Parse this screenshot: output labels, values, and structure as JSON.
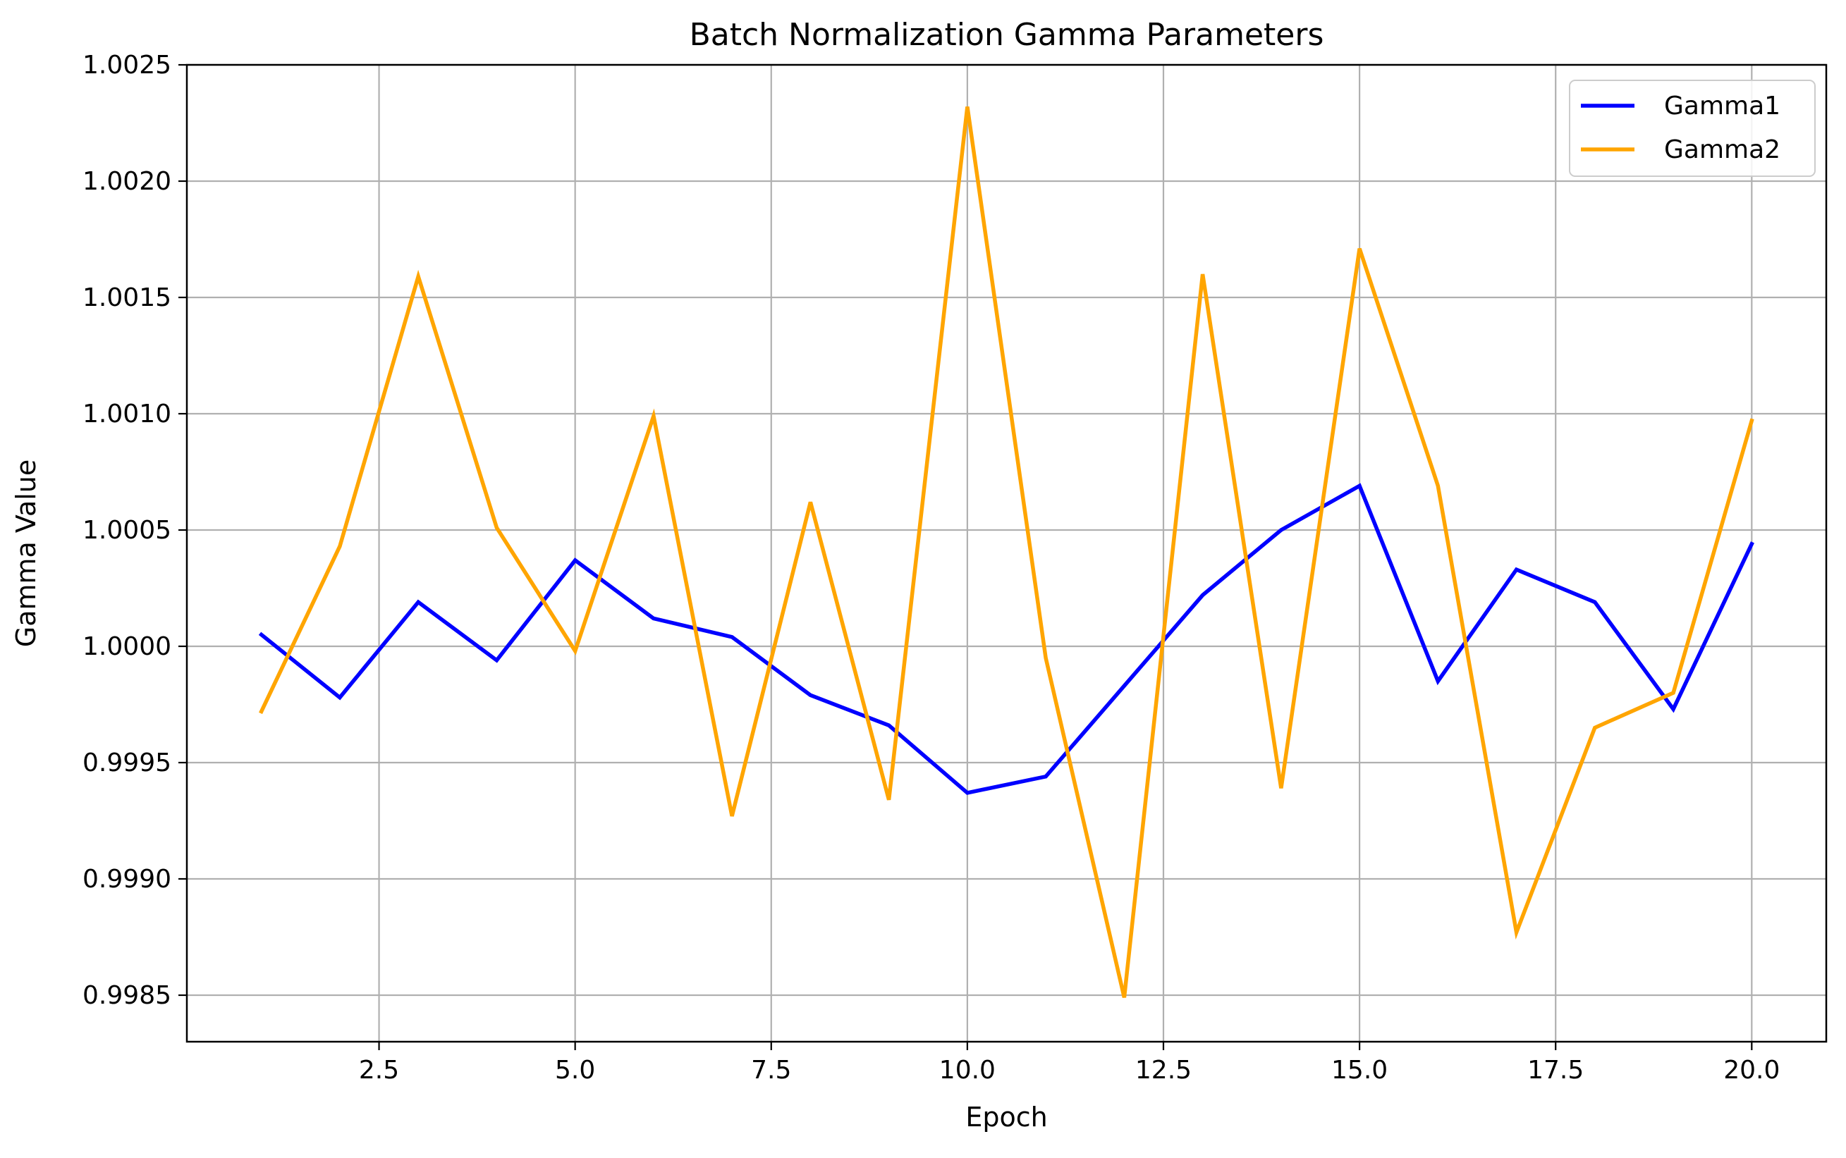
{
  "chart_data": {
    "type": "line",
    "title": "Batch Normalization Gamma Parameters",
    "xlabel": "Epoch",
    "ylabel": "Gamma Value",
    "x": [
      1,
      2,
      3,
      4,
      5,
      6,
      7,
      8,
      9,
      10,
      11,
      12,
      13,
      14,
      15,
      16,
      17,
      18,
      19,
      20
    ],
    "xlim": [
      0.05,
      20.95
    ],
    "ylim": [
      0.9983,
      1.0025
    ],
    "xticks": [
      2.5,
      5.0,
      7.5,
      10.0,
      12.5,
      15.0,
      17.5,
      20.0
    ],
    "xtick_labels": [
      "2.5",
      "5.0",
      "7.5",
      "10.0",
      "12.5",
      "15.0",
      "17.5",
      "20.0"
    ],
    "yticks": [
      0.9985,
      0.999,
      0.9995,
      1.0,
      1.0005,
      1.001,
      1.0015,
      1.002,
      1.0025
    ],
    "ytick_labels": [
      "0.9985",
      "0.9990",
      "0.9995",
      "1.0000",
      "1.0005",
      "1.0010",
      "1.0015",
      "1.0020",
      "1.0025"
    ],
    "grid": true,
    "legend_position": "top-right",
    "series": [
      {
        "name": "Gamma1",
        "color": "#0000ff",
        "values": [
          1.00005,
          0.99978,
          1.00019,
          0.99994,
          1.00037,
          1.00012,
          1.00004,
          0.99979,
          0.99966,
          0.99937,
          0.99944,
          0.99983,
          1.00022,
          1.0005,
          1.00069,
          0.99985,
          1.00033,
          1.00019,
          0.99973,
          1.00044
        ]
      },
      {
        "name": "Gamma2",
        "color": "#ffa500",
        "values": [
          0.99972,
          1.00043,
          1.00159,
          1.00051,
          0.99998,
          1.00099,
          0.99927,
          1.00062,
          0.99934,
          1.00232,
          0.99995,
          0.99849,
          1.0016,
          0.99939,
          1.00171,
          1.00069,
          0.99877,
          0.99965,
          0.9998,
          1.00097
        ]
      }
    ]
  }
}
